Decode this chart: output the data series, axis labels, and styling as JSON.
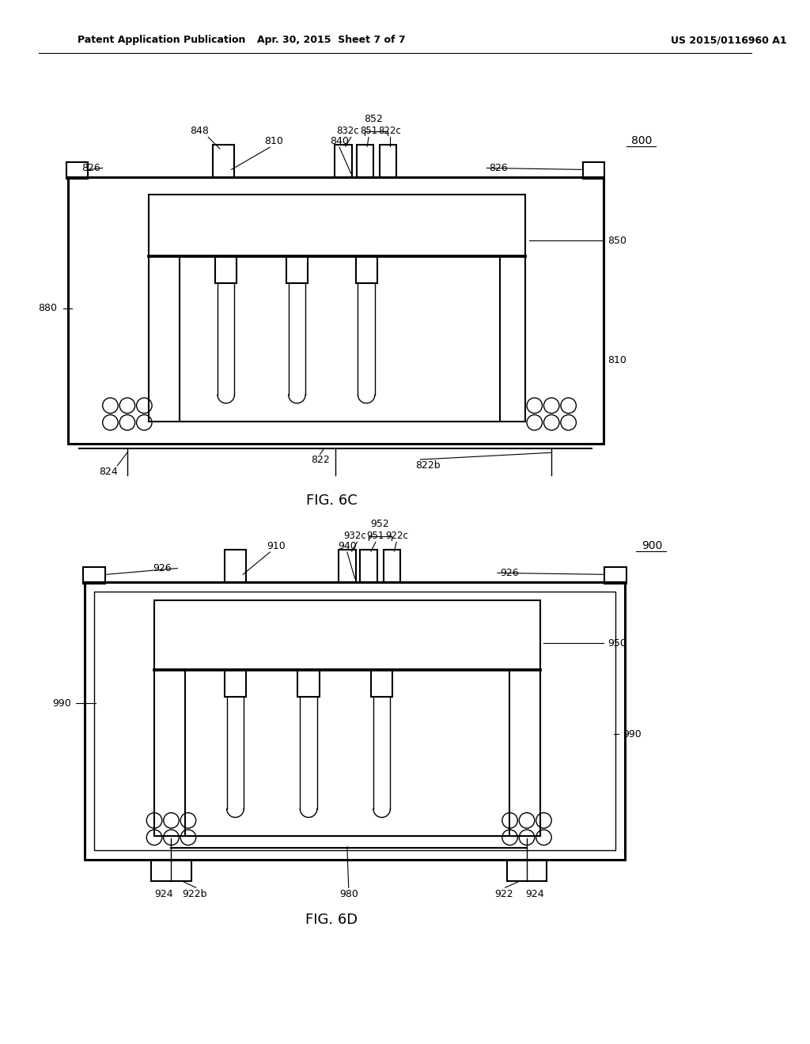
{
  "bg_color": "#ffffff",
  "line_color": "#000000",
  "header_left": "Patent Application Publication",
  "header_center": "Apr. 30, 2015  Sheet 7 of 7",
  "header_right": "US 2015/0116960 A1",
  "fig6c_label": "FIG. 6C",
  "fig6d_label": "FIG. 6D",
  "fig6c_ref": "800",
  "fig6d_ref": "900"
}
